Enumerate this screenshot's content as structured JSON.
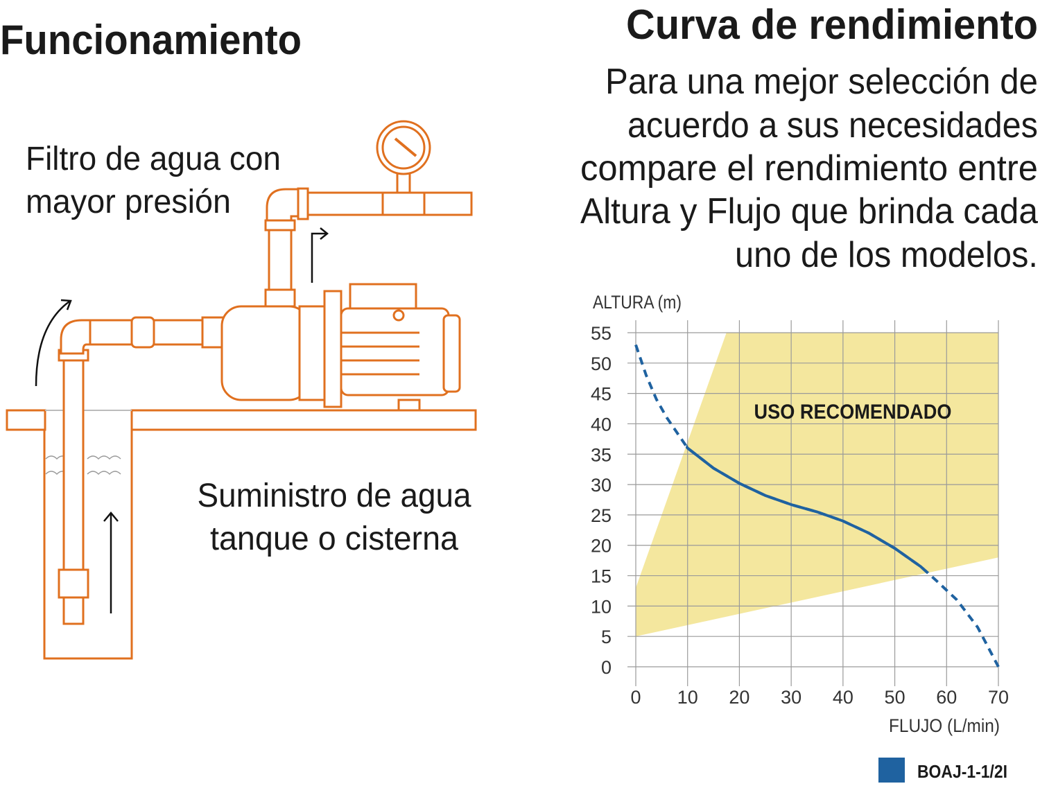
{
  "left": {
    "title": "Funcionamiento",
    "filter_label": [
      "Filtro de agua con",
      "mayor presión"
    ],
    "supply_label": [
      "Suministro de agua",
      "tanque o cisterna"
    ]
  },
  "right": {
    "title": "Curva de rendimiento",
    "description": [
      "Para una mejor selección de",
      "acuerdo a sus necesidades",
      "compare el rendimiento entre",
      "Altura y Flujo que brinda cada",
      "uno de los modelos."
    ]
  },
  "chart_data": {
    "type": "line",
    "y_label": "ALTURA (m)",
    "x_label": "FLUJO (L/min)",
    "annotation": "USO RECOMENDADO",
    "xlim": [
      0,
      70
    ],
    "ylim": [
      0,
      55
    ],
    "xticks": [
      0,
      10,
      20,
      30,
      40,
      50,
      60,
      70
    ],
    "yticks": [
      0,
      5,
      10,
      15,
      20,
      25,
      30,
      35,
      40,
      45,
      50,
      55
    ],
    "grid": true,
    "x": [
      0,
      2,
      4,
      6,
      8,
      10,
      15,
      20,
      25,
      30,
      35,
      40,
      45,
      50,
      55,
      58,
      62,
      66,
      70
    ],
    "series": [
      {
        "name": "BOAJ-1-1/2I",
        "color": "#1f62a0",
        "values": [
          53,
          48,
          44,
          41,
          38.5,
          36,
          32.7,
          30.2,
          28.2,
          26.7,
          25.5,
          24,
          22,
          19.5,
          16.5,
          14.2,
          11,
          6.5,
          0
        ]
      }
    ],
    "recommended_region": {
      "color": "#f4e79e",
      "x": [
        0,
        0,
        17.5,
        70,
        70
      ],
      "y": [
        5,
        13,
        55,
        55,
        18
      ]
    }
  }
}
